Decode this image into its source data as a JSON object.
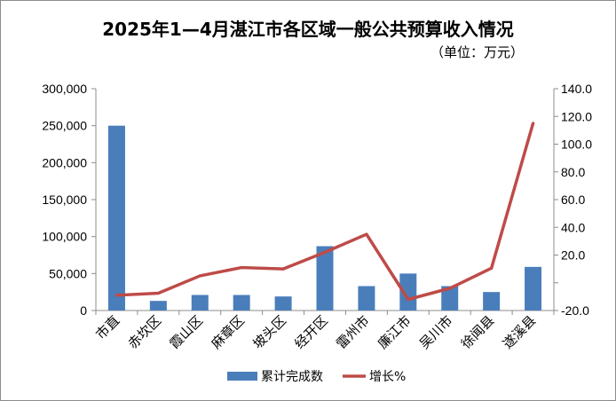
{
  "chart_data": {
    "type": "bar",
    "title": "2025年1—4月湛江市各区域一般公共预算收入情况",
    "subtitle": "（单位：万元）",
    "categories": [
      "市直",
      "赤坎区",
      "霞山区",
      "麻章区",
      "坡头区",
      "经开区",
      "雷州市",
      "廉江市",
      "吴川市",
      "徐闻县",
      "遂溪县"
    ],
    "series": [
      {
        "name": "累计完成数",
        "type": "bar",
        "axis": "left",
        "color": "#4A7EBB",
        "values": [
          250000,
          13000,
          21000,
          21000,
          19000,
          87000,
          33000,
          50000,
          33000,
          25000,
          59000
        ]
      },
      {
        "name": "增长%",
        "type": "line",
        "axis": "right",
        "color": "#BE4B48",
        "values": [
          -9.0,
          -7.5,
          5.0,
          11.0,
          10.0,
          22.0,
          35.0,
          -12.0,
          -4.0,
          10.5,
          115.0
        ]
      }
    ],
    "y_left": {
      "min": 0,
      "max": 300000,
      "step": 50000,
      "tick_labels": [
        "0",
        "50,000",
        "100,000",
        "150,000",
        "200,000",
        "250,000",
        "300,000"
      ]
    },
    "y_right": {
      "min": -20,
      "max": 140,
      "step": 20,
      "tick_labels": [
        "-20.0",
        "",
        "20.0",
        "40.0",
        "60.0",
        "80.0",
        "100.0",
        "120.0",
        "140.0"
      ]
    },
    "grid": false,
    "legend_position": "bottom"
  }
}
